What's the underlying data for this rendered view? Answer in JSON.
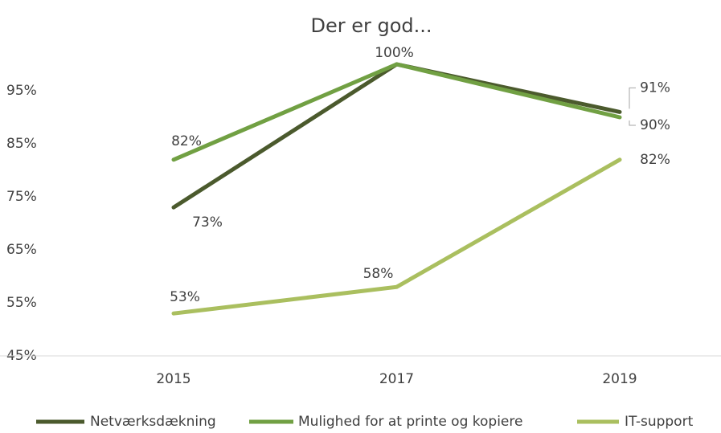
{
  "chart_data": {
    "type": "line",
    "title": "Der er god...",
    "categories": [
      "2015",
      "2017",
      "2019"
    ],
    "series": [
      {
        "name": "Netværksdækning",
        "color": "#4b5a2d",
        "values": [
          73,
          100,
          91
        ],
        "value_labels": [
          "73%",
          "100%",
          "91%"
        ]
      },
      {
        "name": "Mulighed for at printe og kopiere",
        "color": "#71a043",
        "values": [
          82,
          100,
          90
        ],
        "value_labels": [
          "82%",
          null,
          "90%"
        ]
      },
      {
        "name": "IT-support",
        "color": "#aabf5f",
        "values": [
          53,
          58,
          82
        ],
        "value_labels": [
          "53%",
          "58%",
          "82%"
        ]
      }
    ],
    "ylim": [
      45,
      100
    ],
    "yticks": [
      {
        "value": 45,
        "label": "45%"
      },
      {
        "value": 55,
        "label": "55%"
      },
      {
        "value": 65,
        "label": "65%"
      },
      {
        "value": 75,
        "label": "75%"
      },
      {
        "value": 85,
        "label": "85%"
      },
      {
        "value": 95,
        "label": "95%"
      }
    ],
    "grid": false,
    "legend": "bottom"
  }
}
